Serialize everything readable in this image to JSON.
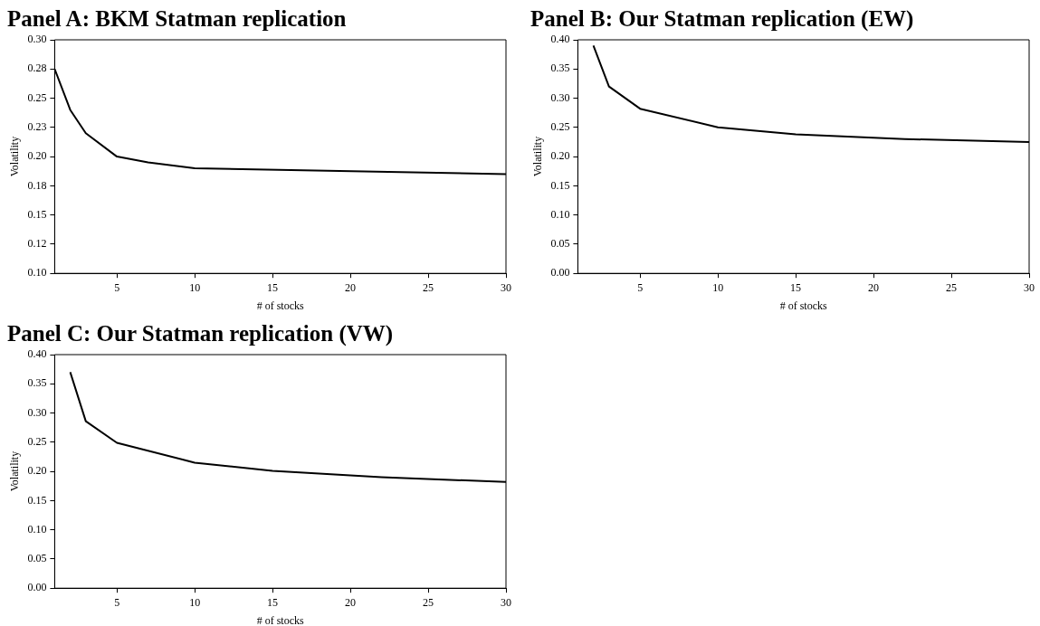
{
  "chart_data": [
    {
      "type": "line",
      "title": "Panel A: BKM Statman replication",
      "xlabel": "# of stocks",
      "ylabel": "Volatility",
      "x": [
        1,
        2,
        3,
        5,
        7,
        10,
        30
      ],
      "series": [
        {
          "color": "#000000",
          "values": [
            0.275,
            0.24,
            0.22,
            0.2,
            0.195,
            0.19,
            0.185
          ]
        }
      ],
      "xlim": [
        1,
        30
      ],
      "xticks": [
        5,
        10,
        15,
        20,
        25,
        30
      ],
      "ylim": [
        0.1,
        0.3
      ],
      "yticks": [
        {
          "value": 0.1,
          "label": "0.10"
        },
        {
          "value": 0.125,
          "label": "0.12"
        },
        {
          "value": 0.15,
          "label": "0.15"
        },
        {
          "value": 0.175,
          "label": "0.18"
        },
        {
          "value": 0.2,
          "label": "0.20"
        },
        {
          "value": 0.225,
          "label": "0.23"
        },
        {
          "value": 0.25,
          "label": "0.25"
        },
        {
          "value": 0.275,
          "label": "0.28"
        },
        {
          "value": 0.3,
          "label": "0.30"
        }
      ],
      "grid": false
    },
    {
      "type": "line",
      "title": "Panel B: Our Statman replication (EW)",
      "xlabel": "# of stocks",
      "ylabel": "Volatility",
      "x": [
        2,
        3,
        5,
        10,
        15,
        22,
        30
      ],
      "series": [
        {
          "color": "#000000",
          "values": [
            0.39,
            0.32,
            0.282,
            0.25,
            0.238,
            0.23,
            0.225
          ]
        }
      ],
      "xlim": [
        1,
        30
      ],
      "xticks": [
        5,
        10,
        15,
        20,
        25,
        30
      ],
      "ylim": [
        0,
        0.4
      ],
      "yticks": [
        {
          "value": 0,
          "label": "0.00"
        },
        {
          "value": 0.05,
          "label": "0.05"
        },
        {
          "value": 0.1,
          "label": "0.10"
        },
        {
          "value": 0.15,
          "label": "0.15"
        },
        {
          "value": 0.2,
          "label": "0.20"
        },
        {
          "value": 0.25,
          "label": "0.25"
        },
        {
          "value": 0.3,
          "label": "0.30"
        },
        {
          "value": 0.35,
          "label": "0.35"
        },
        {
          "value": 0.4,
          "label": "0.40"
        }
      ],
      "grid": false
    },
    {
      "type": "line",
      "title": "Panel C: Our Statman replication (VW)",
      "xlabel": "# of stocks",
      "ylabel": "Volatility",
      "x": [
        2,
        3,
        5,
        10,
        15,
        22,
        30
      ],
      "series": [
        {
          "color": "#000000",
          "values": [
            0.37,
            0.286,
            0.249,
            0.215,
            0.201,
            0.19,
            0.182
          ]
        }
      ],
      "xlim": [
        1,
        30
      ],
      "xticks": [
        5,
        10,
        15,
        20,
        25,
        30
      ],
      "ylim": [
        0,
        0.4
      ],
      "yticks": [
        {
          "value": 0,
          "label": "0.00"
        },
        {
          "value": 0.05,
          "label": "0.05"
        },
        {
          "value": 0.1,
          "label": "0.10"
        },
        {
          "value": 0.15,
          "label": "0.15"
        },
        {
          "value": 0.2,
          "label": "0.20"
        },
        {
          "value": 0.25,
          "label": "0.25"
        },
        {
          "value": 0.3,
          "label": "0.30"
        },
        {
          "value": 0.35,
          "label": "0.35"
        },
        {
          "value": 0.4,
          "label": "0.40"
        }
      ],
      "grid": false
    }
  ]
}
